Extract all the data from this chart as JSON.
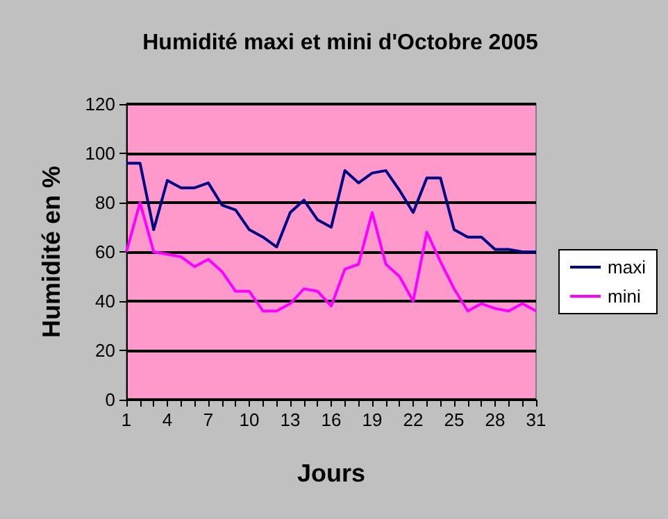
{
  "chart_data": {
    "type": "line",
    "title": "Humidité maxi et mini d'Octobre 2005",
    "xlabel": "Jours",
    "ylabel": "Humidité en %",
    "categories": [
      "1",
      null,
      null,
      "4",
      null,
      null,
      "7",
      null,
      null,
      "10",
      null,
      null,
      "13",
      null,
      null,
      "16",
      null,
      null,
      "19",
      null,
      null,
      "22",
      null,
      null,
      "25",
      null,
      null,
      "28",
      null,
      null,
      "31"
    ],
    "series": [
      {
        "name": "maxi",
        "color": "#000080",
        "values": [
          96,
          96,
          69,
          89,
          86,
          86,
          88,
          79,
          77,
          69,
          66,
          62,
          76,
          81,
          73,
          70,
          93,
          88,
          92,
          93,
          85,
          76,
          90,
          90,
          69,
          66,
          66,
          61,
          61,
          60,
          60
        ]
      },
      {
        "name": "mini",
        "color": "#ff00ff",
        "values": [
          60,
          80,
          60,
          59,
          58,
          54,
          57,
          52,
          44,
          44,
          36,
          36,
          39,
          45,
          44,
          38,
          53,
          55,
          76,
          55,
          50,
          40,
          68,
          56,
          45,
          36,
          39,
          37,
          36,
          39,
          36
        ]
      }
    ],
    "ylim": [
      0,
      120
    ],
    "yticks": [
      0,
      20,
      40,
      60,
      80,
      100,
      120
    ],
    "grid": "y",
    "legend": "right",
    "marker": "none",
    "line_style": "solid"
  }
}
